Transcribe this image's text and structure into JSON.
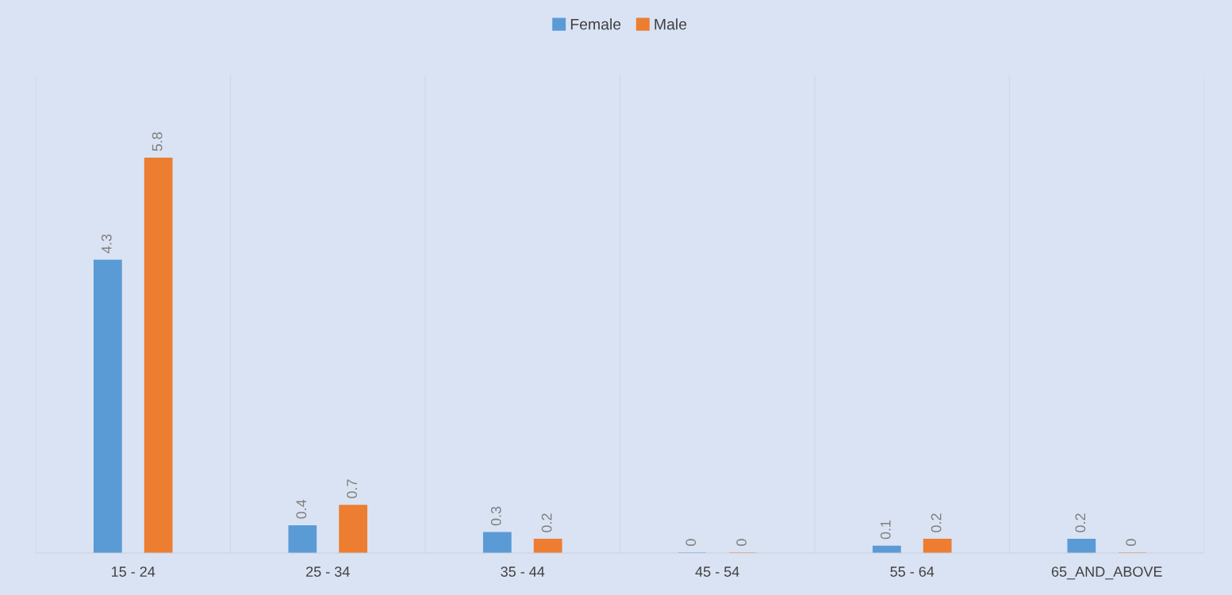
{
  "chart_data": {
    "type": "bar",
    "categories": [
      "15 - 24",
      "25 - 34",
      "35 - 44",
      "45 - 54",
      "55 - 64",
      "65_AND_ABOVE"
    ],
    "series": [
      {
        "name": "Female",
        "color": "#5b9bd5",
        "values": [
          4.3,
          0.4,
          0.3,
          0,
          0.1,
          0.2
        ]
      },
      {
        "name": "Male",
        "color": "#ed7d31",
        "values": [
          5.8,
          0.7,
          0.2,
          0,
          0.2,
          0
        ]
      }
    ],
    "data_labels": true,
    "grid": "x",
    "legend": "top"
  }
}
